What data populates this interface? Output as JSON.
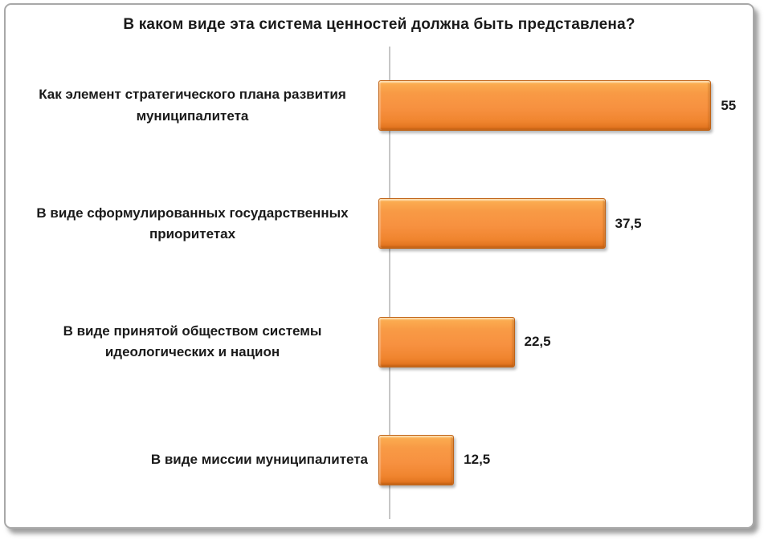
{
  "page": {
    "background": "#ffffff",
    "border_color": "#a8a8a8"
  },
  "chart_data": {
    "type": "bar",
    "orientation": "horizontal",
    "title": "В каком виде эта система ценностей должна быть представлена?",
    "categories": [
      "Как элемент стратегического плана развития муниципалитета",
      "В виде сформулированных государственных приоритетах",
      "В виде принятой обществом системы идеологических и национ",
      "В виде миссии муниципалитета"
    ],
    "values": [
      55,
      37.5,
      22.5,
      12.5
    ],
    "value_labels": [
      "55",
      "37,5",
      "22,5",
      "12,5"
    ],
    "xlabel": "",
    "ylabel": "",
    "xlim": [
      0,
      60
    ],
    "grid": false,
    "legend": false,
    "bar_color": "#f79140",
    "bar_color_light": "#fdc26b",
    "bar_color_dark": "#d66c1a",
    "bar_border_color": "#c06316",
    "axis_line_color": "#c6c6c6",
    "text_color": "#1a1a1a"
  }
}
